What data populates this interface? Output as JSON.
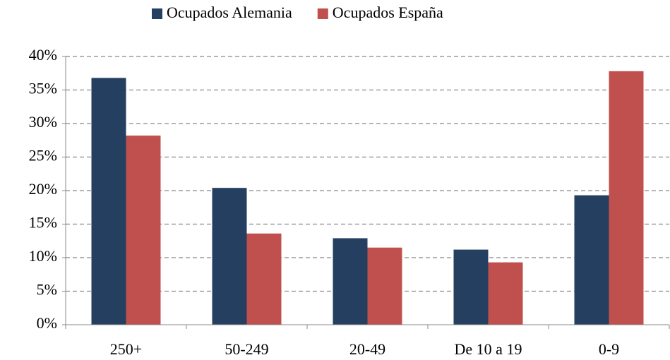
{
  "chart_data": {
    "type": "bar",
    "categories": [
      "250+",
      "50-249",
      "20-49",
      "De 10 a 19",
      "0-9"
    ],
    "series": [
      {
        "name": "Ocupados Alemania",
        "color": "#243f60",
        "values": [
          36.8,
          20.4,
          12.9,
          11.2,
          19.3
        ]
      },
      {
        "name": "Ocupados España",
        "color": "#c0504d",
        "values": [
          28.2,
          13.6,
          11.5,
          9.3,
          37.8
        ]
      }
    ],
    "ylim": [
      0,
      40
    ],
    "yticks": [
      {
        "value": 0,
        "label": "0%"
      },
      {
        "value": 5,
        "label": "5%"
      },
      {
        "value": 10,
        "label": "10%"
      },
      {
        "value": 15,
        "label": "15%"
      },
      {
        "value": 20,
        "label": "20%"
      },
      {
        "value": 25,
        "label": "25%"
      },
      {
        "value": 30,
        "label": "30%"
      },
      {
        "value": 35,
        "label": "35%"
      },
      {
        "value": 40,
        "label": "40%"
      }
    ],
    "grid": true,
    "legend": "top"
  }
}
